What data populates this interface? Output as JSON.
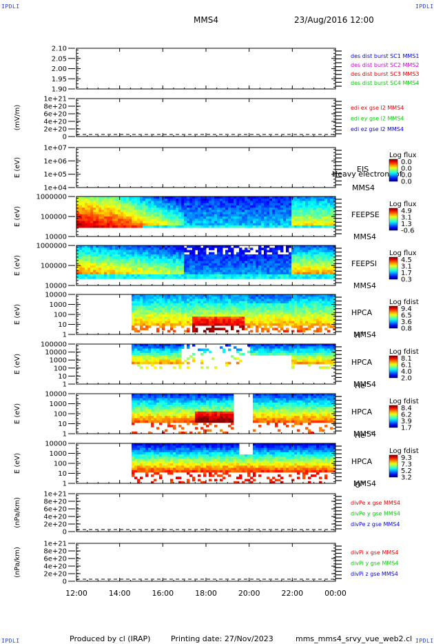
{
  "corners": {
    "top_left": "IPDLI",
    "top_right": "IPDLI",
    "bottom_left": "IPDLI",
    "bottom_right": "IPDLI"
  },
  "header": {
    "spacecraft": "MMS4",
    "date_time": "23/Aug/2016 12:00"
  },
  "footer": {
    "producer": "Produced by cl (IRAP)",
    "printing_date": "Printing date: 27/Nov/2023",
    "script": "mms_mms4_srvy_vue_web2.cl"
  },
  "colors": {
    "red": "#e00000",
    "green": "#00cc00",
    "blue": "#0000dd",
    "magenta": "#d000d0",
    "text_blue": "#1f3bd2"
  },
  "chart_data": {
    "type": "multi-panel time series / spectrogram",
    "x_ticks": [
      "12:00",
      "14:00",
      "16:00",
      "18:00",
      "20:00",
      "22:00",
      "00:00"
    ],
    "xlim_hours": [
      12,
      24
    ],
    "panels": [
      {
        "id": "p1",
        "type": "line",
        "y_ticks": [
          "2.10",
          "2.05",
          "2.00",
          "1.95",
          "1.90"
        ],
        "ylabel": "",
        "legend": [
          {
            "text": "des dist burst SC1 MMS1",
            "color": "#0000dd"
          },
          {
            "text": "des dist burst SC2 MMS2",
            "color": "#d000d0"
          },
          {
            "text": "des dist burst SC3 MMS3",
            "color": "#e00000"
          },
          {
            "text": "des dist burst SC4 MMS4",
            "color": "#00cc00"
          }
        ]
      },
      {
        "id": "p2",
        "type": "line",
        "y_ticks": [
          "1e+21",
          "8e+20",
          "6e+20",
          "4e+20",
          "2e+20",
          "0"
        ],
        "ylabel": "(mV/m)",
        "zero_line": true,
        "legend": [
          {
            "text": "edi ex gse l2 MMS4",
            "color": "#e00000"
          },
          {
            "text": "edi ey gse l2 MMS4",
            "color": "#00cc00"
          },
          {
            "text": "edi ez gse l2 MMS4",
            "color": "#0000dd"
          }
        ]
      },
      {
        "id": "p3",
        "type": "spectrogram",
        "y_ticks": [
          "1e+07",
          "1e+06",
          "1e+05",
          "1e+04"
        ],
        "ylabel": "E (eV)",
        "labels": [
          "EIS",
          "Heavy electron tof",
          "MMS4"
        ],
        "cbar_title": "Log flux",
        "cbar_ticks": [
          "0.0",
          "0.0",
          "0.0",
          "0.0"
        ],
        "coverage": "none"
      },
      {
        "id": "p4",
        "type": "spectrogram",
        "y_ticks": [
          "1000000",
          "100000",
          "10000"
        ],
        "ylabel": "E (eV)",
        "labels": [
          "FEEPSE",
          "MMS4"
        ],
        "cbar_title": "Log flux",
        "cbar_ticks": [
          "4.9",
          "3.1",
          "1.3",
          "-0.6"
        ],
        "coverage": [
          12,
          24
        ]
      },
      {
        "id": "p5",
        "type": "spectrogram",
        "y_ticks": [
          "1000000",
          "100000",
          "10000"
        ],
        "ylabel": "E (eV)",
        "labels": [
          "FEEPSI",
          "MMS4"
        ],
        "cbar_title": "Log flux",
        "cbar_ticks": [
          "4.5",
          "3.1",
          "1.7",
          "0.3"
        ],
        "coverage": [
          12,
          24
        ]
      },
      {
        "id": "p6",
        "type": "spectrogram",
        "y_ticks": [
          "10000",
          "1000",
          "100",
          "10",
          "1"
        ],
        "ylabel": "E (eV)",
        "labels": [
          "HPCA",
          "MMS4"
        ],
        "species": "H",
        "charge": "+",
        "cbar_title": "Log fdist",
        "cbar_ticks": [
          "9.4",
          "6.5",
          "3.6",
          "0.8"
        ],
        "coverage": [
          14.6,
          24
        ]
      },
      {
        "id": "p7",
        "type": "spectrogram",
        "y_ticks": [
          "100000",
          "10000",
          "1000",
          "100",
          "10",
          "1"
        ],
        "ylabel": "E (eV)",
        "labels": [
          "HPCA",
          "MMS4"
        ],
        "species": "He",
        "charge": "+",
        "cbar_title": "Log fdist",
        "cbar_ticks": [
          "8.1",
          "6.1",
          "4.0",
          "2.0"
        ],
        "coverage": [
          14.6,
          24
        ]
      },
      {
        "id": "p8",
        "type": "spectrogram",
        "y_ticks": [
          "10000",
          "1000",
          "100",
          "10",
          "1"
        ],
        "ylabel": "E (eV)",
        "labels": [
          "HPCA",
          "MMS4"
        ],
        "species": "He",
        "charge": "++",
        "cbar_title": "Log fdist",
        "cbar_ticks": [
          "8.4",
          "6.2",
          "3.9",
          "1.7"
        ],
        "coverage": [
          14.6,
          24
        ]
      },
      {
        "id": "p9",
        "type": "spectrogram",
        "y_ticks": [
          "10000",
          "1000",
          "100",
          "10",
          "1"
        ],
        "ylabel": "E (eV)",
        "labels": [
          "HPCA",
          "MMS4"
        ],
        "species": "O",
        "charge": "+",
        "cbar_title": "Log fdist",
        "cbar_ticks": [
          "9.3",
          "7.3",
          "5.2",
          "3.2"
        ],
        "coverage": [
          14.6,
          24
        ]
      },
      {
        "id": "p10",
        "type": "line",
        "y_ticks": [
          "1e+21",
          "8e+20",
          "6e+20",
          "4e+20",
          "2e+20",
          "0"
        ],
        "ylabel": "(nPa/km)",
        "zero_line": true,
        "legend": [
          {
            "text": "divPe x gse MMS4",
            "color": "#e00000"
          },
          {
            "text": "divPe y gse MMS4",
            "color": "#00cc00"
          },
          {
            "text": "divPe z gse MMS4",
            "color": "#0000dd"
          }
        ]
      },
      {
        "id": "p11",
        "type": "line",
        "y_ticks": [
          "1e+21",
          "8e+20",
          "6e+20",
          "4e+20",
          "2e+20",
          "0"
        ],
        "ylabel": "(nPa/km)",
        "zero_line": true,
        "legend": [
          {
            "text": "divPi x gse MMS4",
            "color": "#e00000"
          },
          {
            "text": "divPi y gse MMS4",
            "color": "#00cc00"
          },
          {
            "text": "divPi z gse MMS4",
            "color": "#0000dd"
          }
        ]
      }
    ]
  }
}
